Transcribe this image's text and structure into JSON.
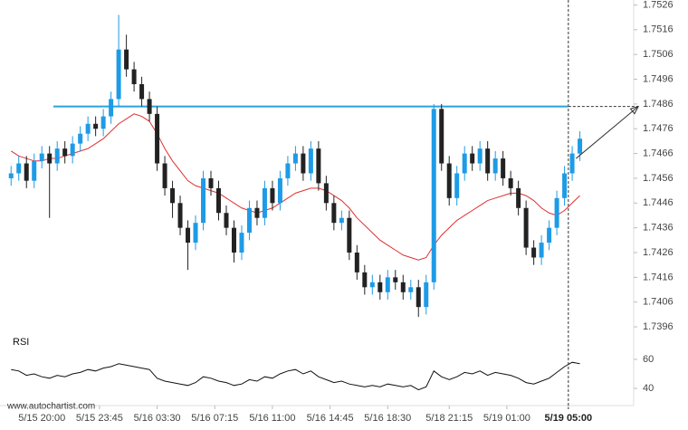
{
  "source": "www.autochartist.com",
  "chart_data": [
    {
      "type": "candlestick",
      "up_color": "#1e9be6",
      "down_color": "#222222",
      "xlim": [
        -0.5,
        81
      ],
      "xticks": [
        {
          "value": 4,
          "label": "5/15 20:00"
        },
        {
          "value": 11.5,
          "label": "5/15 23:45"
        },
        {
          "value": 19,
          "label": "5/16 03:30"
        },
        {
          "value": 26.5,
          "label": "5/16 07:15"
        },
        {
          "value": 34,
          "label": "5/16 11:00"
        },
        {
          "value": 41.5,
          "label": "5/16 14:45"
        },
        {
          "value": 49,
          "label": "5/16 18:30"
        },
        {
          "value": 57,
          "label": "5/18 21:15"
        },
        {
          "value": 64.5,
          "label": "5/19 01:00"
        },
        {
          "value": 72.5,
          "label": "5/19 05:00"
        }
      ],
      "ylim": [
        1.7392,
        1.7528
      ],
      "yticks": [
        1.7526,
        1.7516,
        1.7506,
        1.7496,
        1.7486,
        1.7476,
        1.7466,
        1.7456,
        1.7446,
        1.7436,
        1.7426,
        1.7416,
        1.7406,
        1.7396
      ],
      "open": [
        1.7456,
        1.7458,
        1.7462,
        1.7455,
        1.7463,
        1.7466,
        1.7462,
        1.7468,
        1.7465,
        1.747,
        1.7474,
        1.7478,
        1.7476,
        1.7481,
        1.7488,
        1.7508,
        1.75,
        1.7494,
        1.7488,
        1.7482,
        1.7462,
        1.7452,
        1.7446,
        1.7436,
        1.743,
        1.7438,
        1.7456,
        1.7452,
        1.7442,
        1.7436,
        1.7426,
        1.7434,
        1.7444,
        1.744,
        1.7452,
        1.7446,
        1.7456,
        1.7462,
        1.7466,
        1.7458,
        1.7468,
        1.7454,
        1.7446,
        1.7438,
        1.744,
        1.7426,
        1.7418,
        1.7412,
        1.7414,
        1.741,
        1.7416,
        1.7414,
        1.741,
        1.7412,
        1.7404,
        1.7414,
        1.7484,
        1.7462,
        1.7448,
        1.7458,
        1.7466,
        1.7462,
        1.7468,
        1.7458,
        1.7464,
        1.7456,
        1.7452,
        1.7444,
        1.7428,
        1.7424,
        1.743,
        1.7436,
        1.7448,
        1.7458,
        1.7466
      ],
      "high": [
        1.7461,
        1.7465,
        1.7465,
        1.7466,
        1.7469,
        1.7469,
        1.7471,
        1.7471,
        1.7473,
        1.7477,
        1.7481,
        1.7481,
        1.7484,
        1.7491,
        1.7522,
        1.7514,
        1.7503,
        1.7497,
        1.7491,
        1.7485,
        1.7465,
        1.7455,
        1.7449,
        1.7439,
        1.7441,
        1.7459,
        1.7459,
        1.7455,
        1.7445,
        1.7439,
        1.7437,
        1.7447,
        1.7447,
        1.7455,
        1.7455,
        1.7459,
        1.7465,
        1.7469,
        1.7469,
        1.7471,
        1.7471,
        1.7457,
        1.7449,
        1.7443,
        1.7443,
        1.7429,
        1.7421,
        1.7417,
        1.7417,
        1.7419,
        1.7419,
        1.7417,
        1.7415,
        1.7415,
        1.7417,
        1.7486,
        1.7486,
        1.7465,
        1.7461,
        1.7469,
        1.7469,
        1.7471,
        1.7471,
        1.7467,
        1.7467,
        1.7459,
        1.7455,
        1.7447,
        1.7431,
        1.7433,
        1.7439,
        1.7451,
        1.7461,
        1.7469,
        1.7475
      ],
      "low": [
        1.7453,
        1.7455,
        1.7452,
        1.7452,
        1.746,
        1.744,
        1.7459,
        1.7462,
        1.7462,
        1.7467,
        1.7471,
        1.7473,
        1.7473,
        1.7478,
        1.7485,
        1.7497,
        1.7491,
        1.7485,
        1.7479,
        1.7459,
        1.7449,
        1.744,
        1.7433,
        1.7419,
        1.7427,
        1.7435,
        1.7449,
        1.7439,
        1.7433,
        1.7422,
        1.7423,
        1.7431,
        1.7437,
        1.7437,
        1.7443,
        1.7443,
        1.7453,
        1.7459,
        1.7455,
        1.7455,
        1.7451,
        1.7443,
        1.7435,
        1.7435,
        1.7423,
        1.7415,
        1.7409,
        1.7409,
        1.7407,
        1.7407,
        1.7411,
        1.7407,
        1.7407,
        1.74,
        1.7401,
        1.7411,
        1.7459,
        1.7445,
        1.7445,
        1.7455,
        1.7459,
        1.7459,
        1.7455,
        1.7455,
        1.7453,
        1.7449,
        1.7441,
        1.7425,
        1.7421,
        1.7421,
        1.7427,
        1.7433,
        1.7445,
        1.7455,
        1.7463
      ],
      "close": [
        1.7458,
        1.7462,
        1.7455,
        1.7463,
        1.7466,
        1.7462,
        1.7468,
        1.7465,
        1.747,
        1.7474,
        1.7478,
        1.7476,
        1.7481,
        1.7488,
        1.7508,
        1.75,
        1.7494,
        1.7488,
        1.7482,
        1.7462,
        1.7452,
        1.7446,
        1.7436,
        1.743,
        1.7438,
        1.7456,
        1.7452,
        1.7442,
        1.7436,
        1.7426,
        1.7434,
        1.7444,
        1.744,
        1.7452,
        1.7446,
        1.7456,
        1.7462,
        1.7466,
        1.7458,
        1.7468,
        1.7454,
        1.7446,
        1.7438,
        1.744,
        1.7426,
        1.7418,
        1.7412,
        1.7414,
        1.741,
        1.7416,
        1.7414,
        1.741,
        1.7412,
        1.7404,
        1.7414,
        1.7484,
        1.7462,
        1.7448,
        1.7458,
        1.7466,
        1.7462,
        1.7468,
        1.7458,
        1.7464,
        1.7456,
        1.7452,
        1.7444,
        1.7428,
        1.7424,
        1.743,
        1.7436,
        1.7448,
        1.7458,
        1.7466,
        1.7472
      ],
      "moving_average": {
        "color": "#e03030",
        "values": [
          1.7467,
          1.7465,
          1.7464,
          1.7463,
          1.7463,
          1.7464,
          1.7464,
          1.7465,
          1.7466,
          1.7467,
          1.7468,
          1.747,
          1.7472,
          1.7475,
          1.7478,
          1.748,
          1.7482,
          1.7481,
          1.7479,
          1.7474,
          1.7468,
          1.7463,
          1.7459,
          1.7455,
          1.7453,
          1.7452,
          1.7451,
          1.745,
          1.7448,
          1.7446,
          1.7444,
          1.7443,
          1.7442,
          1.7443,
          1.7444,
          1.7446,
          1.7448,
          1.745,
          1.7451,
          1.7452,
          1.7452,
          1.7451,
          1.7449,
          1.7447,
          1.7444,
          1.744,
          1.7437,
          1.7434,
          1.7431,
          1.7429,
          1.7427,
          1.7425,
          1.7424,
          1.7423,
          1.7424,
          1.7429,
          1.7433,
          1.7436,
          1.7439,
          1.7441,
          1.7443,
          1.7445,
          1.7447,
          1.7448,
          1.7449,
          1.745,
          1.745,
          1.7449,
          1.7447,
          1.7444,
          1.7442,
          1.7441,
          1.7443,
          1.7446,
          1.7449
        ]
      },
      "resistance": 1.7485,
      "resistance_color": "#29a3e0",
      "resistance_x": [
        5.5,
        72.5
      ],
      "current_x": 72.5,
      "forecast_x": [
        73.5,
        81.6
      ],
      "forecast_y": [
        1.7464,
        1.7485
      ]
    },
    {
      "type": "line",
      "title": "RSI",
      "color": "#111111",
      "xlim": [
        -0.5,
        81
      ],
      "ylim": [
        30,
        75
      ],
      "yticks": [
        60,
        40
      ],
      "values": [
        53,
        52,
        49,
        50,
        48,
        47,
        49,
        48,
        50,
        51,
        53,
        52,
        54,
        55,
        57,
        56,
        55,
        54,
        53,
        47,
        45,
        44,
        43,
        42,
        44,
        48,
        47,
        45,
        44,
        42,
        43,
        46,
        45,
        48,
        47,
        50,
        52,
        53,
        50,
        52,
        48,
        46,
        44,
        45,
        43,
        42,
        41,
        42,
        41,
        43,
        42,
        41,
        42,
        39,
        41,
        52,
        48,
        46,
        48,
        51,
        50,
        52,
        49,
        51,
        50,
        49,
        47,
        44,
        43,
        45,
        47,
        51,
        55,
        58,
        57
      ]
    }
  ]
}
